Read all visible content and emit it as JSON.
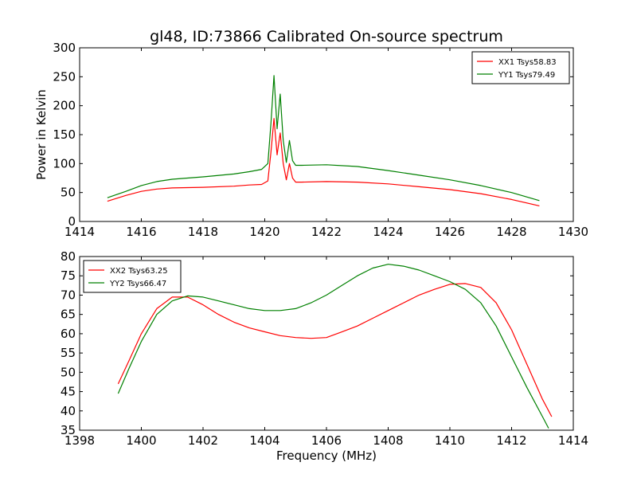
{
  "figure_title": "gl48, ID:73866 Calibrated On-source spectrum",
  "chart_data": [
    {
      "type": "line",
      "title": "gl48, ID:73866 Calibrated On-source spectrum",
      "xlabel": "",
      "ylabel": "Power in Kelvin",
      "xlim": [
        1414,
        1430
      ],
      "ylim": [
        0,
        300
      ],
      "xticks": [
        1414,
        1416,
        1418,
        1420,
        1422,
        1424,
        1426,
        1428,
        1430
      ],
      "yticks": [
        0,
        50,
        100,
        150,
        200,
        250,
        300
      ],
      "grid": false,
      "legend_position": "top-right",
      "series": [
        {
          "name": "XX1 Tsys58.83",
          "color": "#ff0000",
          "x": [
            1414.9,
            1415.5,
            1416.0,
            1416.5,
            1417.0,
            1418.0,
            1419.0,
            1419.5,
            1419.9,
            1420.1,
            1420.2,
            1420.3,
            1420.4,
            1420.5,
            1420.6,
            1420.7,
            1420.8,
            1420.9,
            1421.0,
            1421.2,
            1422.0,
            1423.0,
            1424.0,
            1425.0,
            1426.0,
            1427.0,
            1428.0,
            1428.9
          ],
          "y": [
            35,
            45,
            52,
            56,
            58,
            59,
            61,
            63,
            64,
            70,
            120,
            178,
            115,
            153,
            100,
            72,
            100,
            75,
            68,
            68,
            69,
            68,
            65,
            60,
            55,
            48,
            38,
            27
          ]
        },
        {
          "name": "YY1 Tsys79.49",
          "color": "#008000",
          "x": [
            1414.9,
            1415.5,
            1416.0,
            1416.5,
            1417.0,
            1418.0,
            1419.0,
            1419.5,
            1419.9,
            1420.1,
            1420.2,
            1420.3,
            1420.4,
            1420.5,
            1420.6,
            1420.7,
            1420.8,
            1420.9,
            1421.0,
            1421.2,
            1422.0,
            1423.0,
            1424.0,
            1425.0,
            1426.0,
            1427.0,
            1428.0,
            1428.9
          ],
          "y": [
            41,
            52,
            62,
            69,
            73,
            77,
            82,
            86,
            90,
            100,
            170,
            252,
            160,
            220,
            140,
            102,
            140,
            105,
            97,
            97,
            98,
            95,
            88,
            80,
            72,
            62,
            50,
            36
          ]
        }
      ]
    },
    {
      "type": "line",
      "title": "",
      "xlabel": "Frequency (MHz)",
      "ylabel": "",
      "xlim": [
        1398,
        1414
      ],
      "ylim": [
        35,
        80
      ],
      "xticks": [
        1398,
        1400,
        1402,
        1404,
        1406,
        1408,
        1410,
        1412,
        1414
      ],
      "yticks": [
        35,
        40,
        45,
        50,
        55,
        60,
        65,
        70,
        75,
        80
      ],
      "grid": false,
      "legend_position": "top-left",
      "series": [
        {
          "name": "XX2 Tsys63.25",
          "color": "#ff0000",
          "x": [
            1399.25,
            1399.6,
            1400.0,
            1400.5,
            1401.0,
            1401.5,
            1402.0,
            1402.5,
            1403.0,
            1403.5,
            1404.0,
            1404.5,
            1405.0,
            1405.5,
            1406.0,
            1406.5,
            1407.0,
            1407.5,
            1408.0,
            1408.5,
            1409.0,
            1409.5,
            1410.0,
            1410.5,
            1411.0,
            1411.5,
            1412.0,
            1412.5,
            1413.0,
            1413.3
          ],
          "y": [
            47,
            53,
            60,
            66.5,
            69.5,
            69.5,
            67.5,
            65,
            63,
            61.5,
            60.5,
            59.5,
            59,
            58.8,
            59,
            60.5,
            62,
            64,
            66,
            68,
            70,
            71.5,
            72.8,
            73,
            72,
            68,
            61,
            52,
            43,
            38.5
          ]
        },
        {
          "name": "YY2 Tsys66.47",
          "color": "#008000",
          "x": [
            1399.25,
            1399.6,
            1400.0,
            1400.5,
            1401.0,
            1401.5,
            1402.0,
            1402.5,
            1403.0,
            1403.5,
            1404.0,
            1404.5,
            1405.0,
            1405.5,
            1406.0,
            1406.5,
            1407.0,
            1407.5,
            1408.0,
            1408.5,
            1409.0,
            1409.5,
            1410.0,
            1410.5,
            1411.0,
            1411.5,
            1412.0,
            1412.5,
            1413.0,
            1413.2
          ],
          "y": [
            44.5,
            51,
            58,
            65,
            68.5,
            69.8,
            69.5,
            68.5,
            67.5,
            66.5,
            66,
            66,
            66.5,
            68,
            70,
            72.5,
            75,
            77,
            78,
            77.5,
            76.5,
            75,
            73.5,
            71.5,
            68,
            62,
            54,
            46,
            38.5,
            35.5
          ]
        }
      ]
    }
  ]
}
